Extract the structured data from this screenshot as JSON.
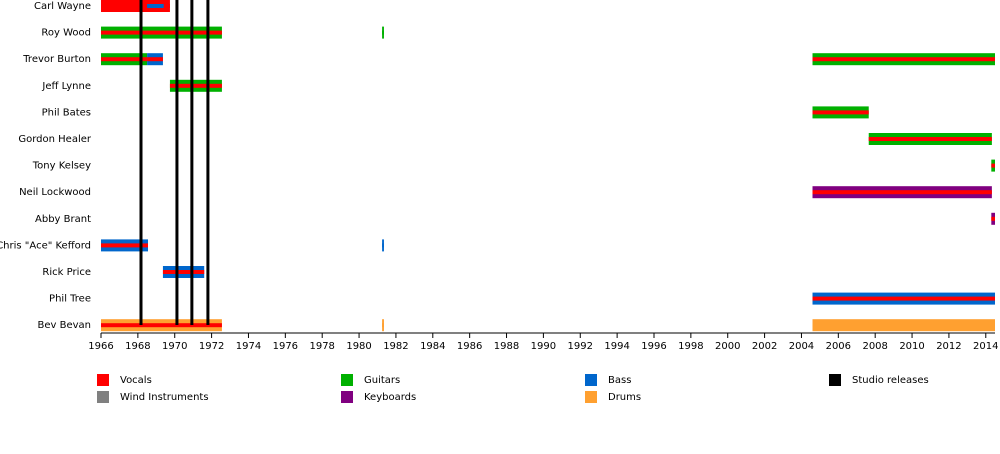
{
  "chart_data": {
    "type": "timeline",
    "categories": [
      "Carl Wayne",
      "Roy Wood",
      "Trevor Burton",
      "Jeff Lynne",
      "Phil Bates",
      "Gordon Healer",
      "Tony Kelsey",
      "Neil Lockwood",
      "Abby Brant",
      "Chris \"Ace\" Kefford",
      "Rick Price",
      "Phil Tree",
      "Bev Bevan"
    ],
    "bars": [
      [
        {
          "start": 1966,
          "end": 1969.74,
          "color": "#ff0000",
          "inner_color": "#ff0000"
        },
        {
          "start": 1968.5,
          "end": 1969.4,
          "color": "#ff0000",
          "inner_color": "#0066cc"
        }
      ],
      [
        {
          "start": 1966,
          "end": 1972.56,
          "color": "#00b000",
          "inner_color": "#ff0000"
        },
        {
          "start": 1981.25,
          "end": 1981.35,
          "color": "#00b000",
          "inner_color": "#00b000"
        }
      ],
      [
        {
          "start": 1966,
          "end": 1968.5,
          "color": "#00b000",
          "inner_color": "#ff0000"
        },
        {
          "start": 1968.5,
          "end": 1969.36,
          "color": "#0066cc",
          "inner_color": "#ff0000"
        },
        {
          "start": 2004.6,
          "end": 2014.5,
          "color": "#00b000",
          "inner_color": "#ff0000"
        }
      ],
      [
        {
          "start": 1969.74,
          "end": 1972.56,
          "color": "#00b000",
          "inner_color": "#ff0000"
        }
      ],
      [
        {
          "start": 2004.6,
          "end": 2007.65,
          "color": "#00b000",
          "inner_color": "#ff0000"
        }
      ],
      [
        {
          "start": 2007.65,
          "end": 2014.33,
          "color": "#00b000",
          "inner_color": "#ff0000"
        }
      ],
      [
        {
          "start": 2014.3,
          "end": 2014.5,
          "color": "#00b000",
          "inner_color": "#ff0000"
        }
      ],
      [
        {
          "start": 2004.6,
          "end": 2014.33,
          "color": "#800080",
          "inner_color": "#ff0000"
        }
      ],
      [
        {
          "start": 2014.3,
          "end": 2014.5,
          "color": "#800080",
          "inner_color": "#ff0000"
        }
      ],
      [
        {
          "start": 1966,
          "end": 1968.55,
          "color": "#0066cc",
          "inner_color": "#ff0000"
        },
        {
          "start": 1981.25,
          "end": 1981.35,
          "color": "#0066cc",
          "inner_color": "#0066cc"
        }
      ],
      [
        {
          "start": 1969.36,
          "end": 1971.6,
          "color": "#0066cc",
          "inner_color": "#ff0000"
        }
      ],
      [
        {
          "start": 2004.6,
          "end": 2014.5,
          "color": "#0066cc",
          "inner_color": "#ff0000"
        }
      ],
      [
        {
          "start": 1966,
          "end": 1972.56,
          "color": "#ffa030",
          "inner_color": "#ff0000"
        },
        {
          "start": 1981.25,
          "end": 1981.35,
          "color": "#ffa030",
          "inner_color": "#ffa030"
        },
        {
          "start": 2004.6,
          "end": 2014.5,
          "color": "#ffa030",
          "inner_color": "#ffa030"
        }
      ]
    ],
    "releases": [
      1968.17,
      1970.12,
      1970.93,
      1971.8
    ],
    "xlim": [
      1966,
      2014.5
    ],
    "xticks": [
      1966,
      1968,
      1970,
      1972,
      1974,
      1976,
      1978,
      1980,
      1982,
      1984,
      1986,
      1988,
      1990,
      1992,
      1994,
      1996,
      1998,
      2000,
      2002,
      2004,
      2006,
      2008,
      2010,
      2012,
      2014
    ],
    "legend": [
      {
        "name": "Vocals",
        "color": "#ff0000"
      },
      {
        "name": "Guitars",
        "color": "#00b000"
      },
      {
        "name": "Bass",
        "color": "#0066cc"
      },
      {
        "name": "Studio releases",
        "color": "#000000"
      },
      {
        "name": "Wind Instruments",
        "color": "#808080"
      },
      {
        "name": "Keyboards",
        "color": "#800080"
      },
      {
        "name": "Drums",
        "color": "#ffa030"
      }
    ]
  }
}
